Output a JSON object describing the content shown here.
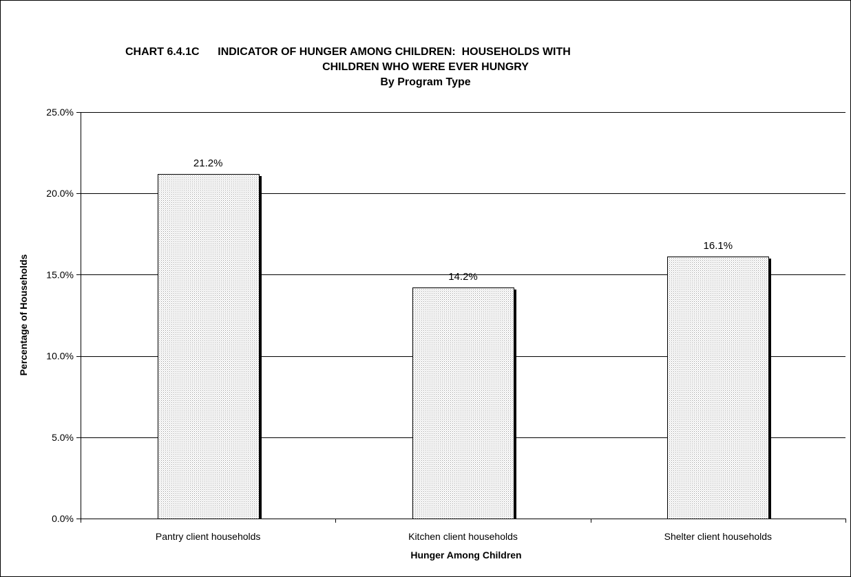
{
  "chart_data": {
    "type": "bar",
    "title_lines": [
      "CHART 6.4.1C      INDICATOR OF HUNGER AMONG CHILDREN:  HOUSEHOLDS WITH",
      "CHILDREN WHO WERE EVER HUNGRY"
    ],
    "subtitle": "By Program Type",
    "xlabel": "Hunger Among Children",
    "ylabel": "Percentage of Households",
    "categories": [
      "Pantry client households",
      "Kitchen client households",
      "Shelter client households"
    ],
    "values": [
      21.2,
      14.2,
      16.1
    ],
    "data_labels": [
      "21.2%",
      "14.2%",
      "16.1%"
    ],
    "ylim": [
      0,
      25
    ],
    "y_ticks": [
      0,
      5,
      10,
      15,
      20,
      25
    ],
    "y_tick_labels": [
      "0.0%",
      "5.0%",
      "10.0%",
      "15.0%",
      "20.0%",
      "25.0%"
    ],
    "grid": "horizontal",
    "legend": "none"
  }
}
